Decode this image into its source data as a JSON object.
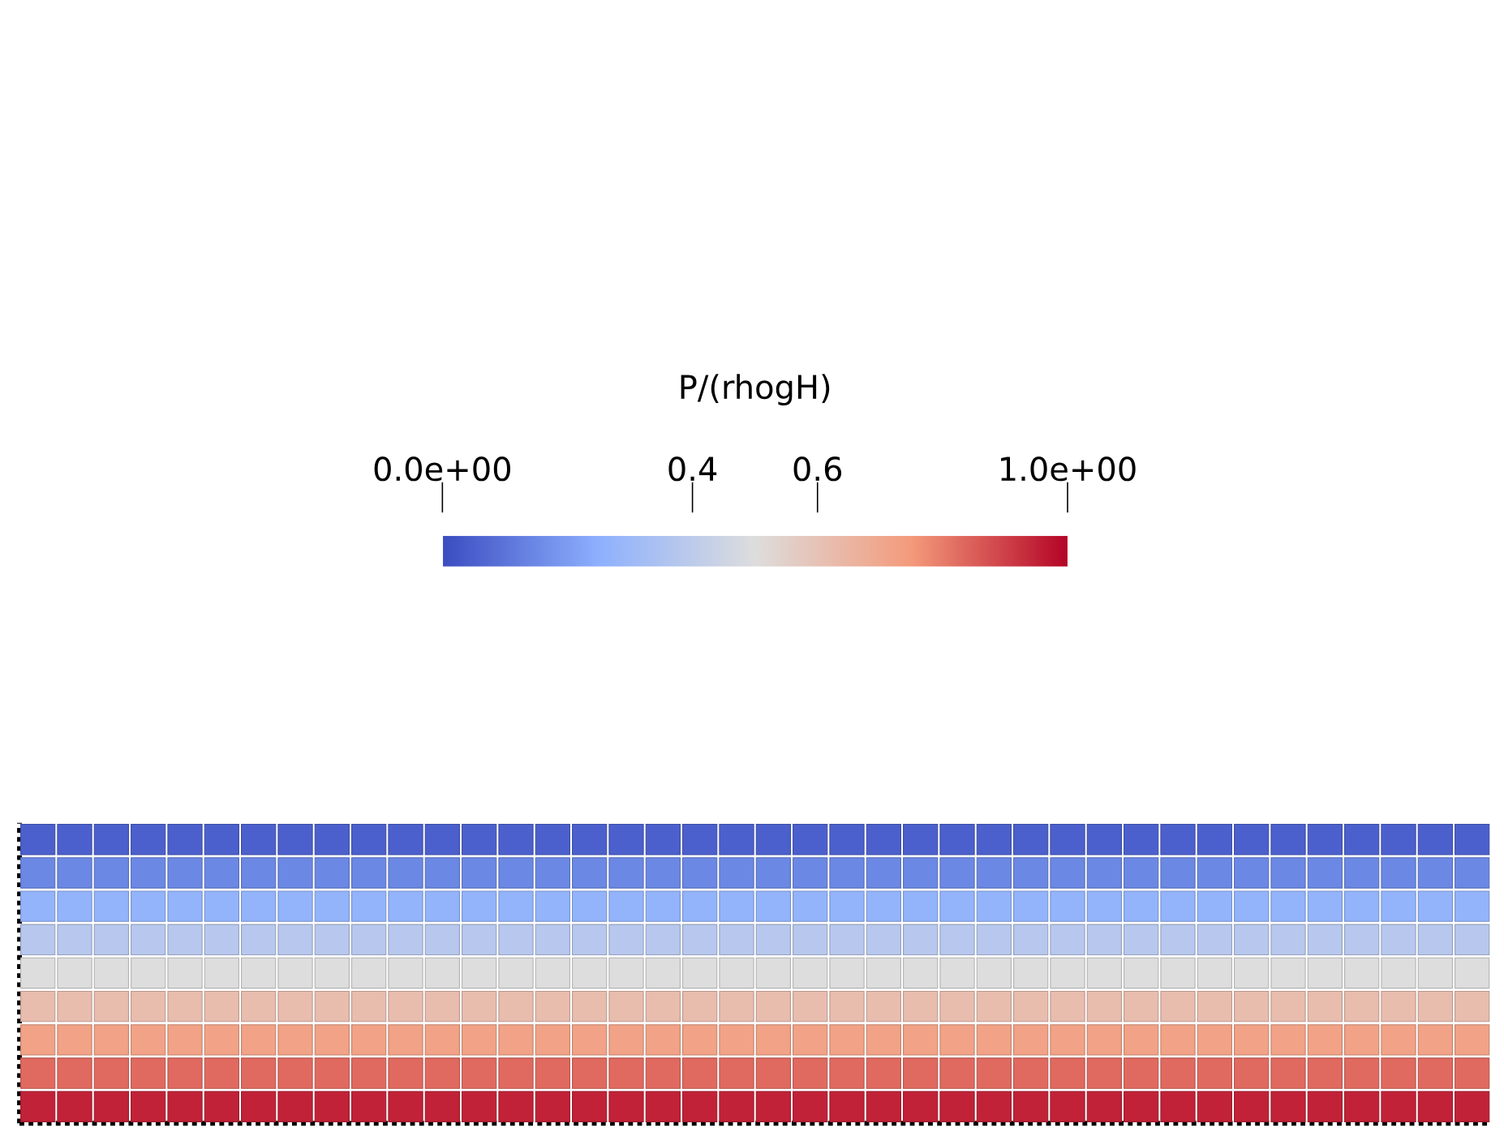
{
  "chart_data": {
    "type": "heatmap",
    "clabel": "P/(rhogH)",
    "categories": [
      null,
      null,
      null,
      null,
      null,
      null,
      null,
      null,
      null,
      null,
      null,
      null,
      null,
      null,
      null,
      null,
      null,
      null,
      null,
      null,
      null,
      null,
      null,
      null,
      null,
      null,
      null,
      null,
      null,
      null,
      null,
      null,
      null,
      null,
      null,
      null,
      null,
      null,
      null,
      null
    ],
    "y_categories": [
      null,
      null,
      null,
      null,
      null,
      null,
      null,
      null,
      null
    ],
    "cells": [
      [
        0.05,
        0.05,
        0.05,
        0.05,
        0.05,
        0.05,
        0.05,
        0.05,
        0.05,
        0.05,
        0.05,
        0.05,
        0.05,
        0.05,
        0.05,
        0.05,
        0.05,
        0.05,
        0.05,
        0.05,
        0.05,
        0.05,
        0.05,
        0.05,
        0.05,
        0.05,
        0.05,
        0.05,
        0.05,
        0.05,
        0.05,
        0.05,
        0.05,
        0.05,
        0.05,
        0.05,
        0.05,
        0.05,
        0.05,
        0.05
      ],
      [
        0.15,
        0.15,
        0.15,
        0.15,
        0.15,
        0.15,
        0.15,
        0.15,
        0.15,
        0.15,
        0.15,
        0.15,
        0.15,
        0.15,
        0.15,
        0.15,
        0.15,
        0.15,
        0.15,
        0.15,
        0.15,
        0.15,
        0.15,
        0.15,
        0.15,
        0.15,
        0.15,
        0.15,
        0.15,
        0.15,
        0.15,
        0.15,
        0.15,
        0.15,
        0.15,
        0.15,
        0.15,
        0.15,
        0.15,
        0.15
      ],
      [
        0.27,
        0.27,
        0.27,
        0.27,
        0.27,
        0.27,
        0.27,
        0.27,
        0.27,
        0.27,
        0.27,
        0.27,
        0.27,
        0.27,
        0.27,
        0.27,
        0.27,
        0.27,
        0.27,
        0.27,
        0.27,
        0.27,
        0.27,
        0.27,
        0.27,
        0.27,
        0.27,
        0.27,
        0.27,
        0.27,
        0.27,
        0.27,
        0.27,
        0.27,
        0.27,
        0.27,
        0.27,
        0.27,
        0.27,
        0.27
      ],
      [
        0.38,
        0.38,
        0.38,
        0.38,
        0.38,
        0.38,
        0.38,
        0.38,
        0.38,
        0.38,
        0.38,
        0.38,
        0.38,
        0.38,
        0.38,
        0.38,
        0.38,
        0.38,
        0.38,
        0.38,
        0.38,
        0.38,
        0.38,
        0.38,
        0.38,
        0.38,
        0.38,
        0.38,
        0.38,
        0.38,
        0.38,
        0.38,
        0.38,
        0.38,
        0.38,
        0.38,
        0.38,
        0.38,
        0.38,
        0.38
      ],
      [
        0.5,
        0.5,
        0.5,
        0.5,
        0.5,
        0.5,
        0.5,
        0.5,
        0.5,
        0.5,
        0.5,
        0.5,
        0.5,
        0.5,
        0.5,
        0.5,
        0.5,
        0.5,
        0.5,
        0.5,
        0.5,
        0.5,
        0.5,
        0.5,
        0.5,
        0.5,
        0.5,
        0.5,
        0.5,
        0.5,
        0.5,
        0.5,
        0.5,
        0.5,
        0.5,
        0.5,
        0.5,
        0.5,
        0.5,
        0.5
      ],
      [
        0.62,
        0.62,
        0.62,
        0.62,
        0.62,
        0.62,
        0.62,
        0.62,
        0.62,
        0.62,
        0.62,
        0.62,
        0.62,
        0.62,
        0.62,
        0.62,
        0.62,
        0.62,
        0.62,
        0.62,
        0.62,
        0.62,
        0.62,
        0.62,
        0.62,
        0.62,
        0.62,
        0.62,
        0.62,
        0.62,
        0.62,
        0.62,
        0.62,
        0.62,
        0.62,
        0.62,
        0.62,
        0.62,
        0.62,
        0.62
      ],
      [
        0.72,
        0.72,
        0.72,
        0.72,
        0.72,
        0.72,
        0.72,
        0.72,
        0.72,
        0.72,
        0.72,
        0.72,
        0.72,
        0.72,
        0.72,
        0.72,
        0.72,
        0.72,
        0.72,
        0.72,
        0.72,
        0.72,
        0.72,
        0.72,
        0.72,
        0.72,
        0.72,
        0.72,
        0.72,
        0.72,
        0.72,
        0.72,
        0.72,
        0.72,
        0.72,
        0.72,
        0.72,
        0.72,
        0.72,
        0.72
      ],
      [
        0.83,
        0.83,
        0.83,
        0.83,
        0.83,
        0.83,
        0.83,
        0.83,
        0.83,
        0.83,
        0.83,
        0.83,
        0.83,
        0.83,
        0.83,
        0.83,
        0.83,
        0.83,
        0.83,
        0.83,
        0.83,
        0.83,
        0.83,
        0.83,
        0.83,
        0.83,
        0.83,
        0.83,
        0.83,
        0.83,
        0.83,
        0.83,
        0.83,
        0.83,
        0.83,
        0.83,
        0.83,
        0.83,
        0.83,
        0.83
      ],
      [
        0.95,
        0.95,
        0.95,
        0.95,
        0.95,
        0.95,
        0.95,
        0.95,
        0.95,
        0.95,
        0.95,
        0.95,
        0.95,
        0.95,
        0.95,
        0.95,
        0.95,
        0.95,
        0.95,
        0.95,
        0.95,
        0.95,
        0.95,
        0.95,
        0.95,
        0.95,
        0.95,
        0.95,
        0.95,
        0.95,
        0.95,
        0.95,
        0.95,
        0.95,
        0.95,
        0.95,
        0.95,
        0.95,
        0.95,
        0.95
      ]
    ],
    "clim": [
      0,
      1
    ],
    "cticks": [
      {
        "value": 0,
        "label": "0.0e+00"
      },
      0.4,
      0.6,
      {
        "value": 1,
        "label": "1.0e+00"
      }
    ]
  }
}
